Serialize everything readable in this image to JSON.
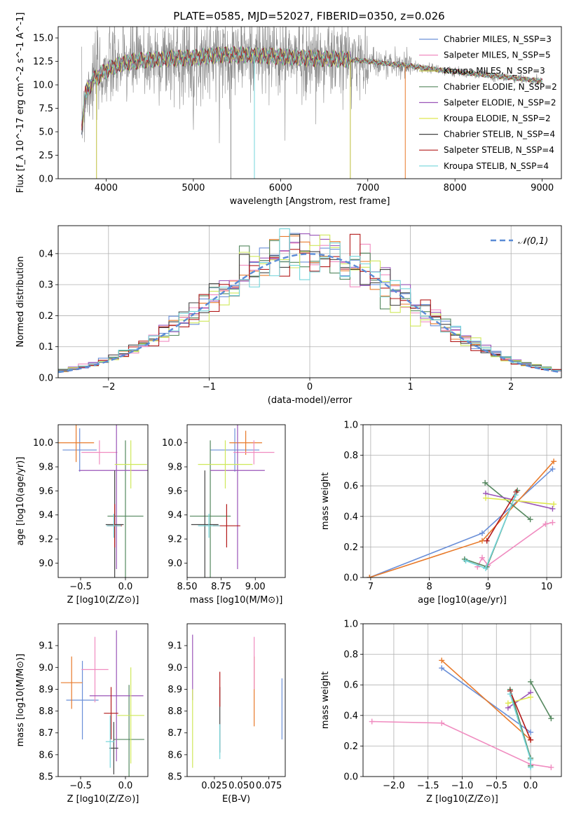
{
  "figure_title": "PLATE=0585, MJD=52027, FIBERID=0350, z=0.026",
  "colors": [
    "#6a8fd8",
    "#e87a2a",
    "#f08cc0",
    "#9a55b8",
    "#cfe85a",
    "#55885f",
    "#555555",
    "#b31b1b",
    "#74d5da",
    "#1f77b4"
  ],
  "chart_data": [
    {
      "id": "spectrum",
      "type": "line",
      "title": "PLATE=0585, MJD=52027, FIBERID=0350, z=0.026",
      "xlabel": "wavelength [Angstrom, rest frame]",
      "ylabel": "Flux [f_λ 10^-17 erg cm^-2 s^-1 A^-1]",
      "xlim": [
        3450,
        9220
      ],
      "ylim": [
        0,
        16.2
      ],
      "xticks": [
        4000,
        5000,
        6000,
        7000,
        8000,
        9000
      ],
      "yticks": [
        0.0,
        2.5,
        5.0,
        7.5,
        10.0,
        12.5,
        15.0
      ],
      "data_range": [
        3720,
        9000
      ],
      "legend_position": "upper right",
      "series": [
        {
          "name": "Chabrier MILES, N_SSP=3",
          "color": "#6a8fd8"
        },
        {
          "name": "Salpeter MILES, N_SSP=5",
          "color": "#f08cc0"
        },
        {
          "name": "Kroupa MILES, N_SSP=3",
          "color": "#bdbd3a"
        },
        {
          "name": "Chabrier ELODIE, N_SSP=2",
          "color": "#55885f"
        },
        {
          "name": "Salpeter ELODIE, N_SSP=2",
          "color": "#9a55b8"
        },
        {
          "name": "Kroupa ELODIE, N_SSP=2",
          "color": "#dfe850"
        },
        {
          "name": "Chabrier STELIB, N_SSP=4",
          "color": "#444444"
        },
        {
          "name": "Salpeter STELIB, N_SSP=4",
          "color": "#b31b1b"
        },
        {
          "name": "Kroupa STELIB, N_SSP=4",
          "color": "#74d5da"
        }
      ],
      "continuum": [
        [
          3720,
          5.5
        ],
        [
          3760,
          9.0
        ],
        [
          3850,
          10.5
        ],
        [
          3950,
          11.2
        ],
        [
          4050,
          11.8
        ],
        [
          4200,
          12.3
        ],
        [
          4400,
          12.6
        ],
        [
          4700,
          12.8
        ],
        [
          5000,
          12.9
        ],
        [
          5300,
          13.2
        ],
        [
          5600,
          13.2
        ],
        [
          6000,
          13.0
        ],
        [
          6400,
          12.8
        ],
        [
          6800,
          12.7
        ],
        [
          7100,
          12.4
        ],
        [
          7300,
          12.2
        ],
        [
          7500,
          12.0
        ],
        [
          7800,
          11.6
        ],
        [
          8100,
          11.3
        ],
        [
          8400,
          11.0
        ],
        [
          8700,
          10.7
        ],
        [
          9000,
          10.4
        ]
      ],
      "spikes": [
        {
          "x": 3890,
          "y": 0.0,
          "color": "#bdbd3a"
        },
        {
          "x": 5700,
          "y": 0.0,
          "color": "#74d5da"
        },
        {
          "x": 6800,
          "y": 0.0,
          "color": "#bdbd3a"
        },
        {
          "x": 7430,
          "y": 0.0,
          "color": "#e87a2a"
        },
        {
          "x": 5430,
          "y": 0.0,
          "color": "#888888"
        }
      ]
    },
    {
      "id": "residual-hist",
      "type": "histogram",
      "xlabel": "(data-model)/error",
      "ylabel": "Normed distribution",
      "xlim": [
        -2.5,
        2.5
      ],
      "ylim": [
        0,
        0.49
      ],
      "xticks": [
        -2,
        -1,
        0,
        1,
        2
      ],
      "xtick_labels": [
        "−2",
        "−1",
        "0",
        "1",
        "2"
      ],
      "yticks": [
        0.0,
        0.1,
        0.2,
        0.3,
        0.4
      ],
      "grid": true,
      "legend_position": "upper right",
      "legend": "𝒩(0,1)",
      "bin_width": 0.1,
      "series_colors": [
        "#6a8fd8",
        "#e87a2a",
        "#f08cc0",
        "#55885f",
        "#9a55b8",
        "#cfe85a",
        "#444444",
        "#b31b1b",
        "#74d5da"
      ]
    },
    {
      "id": "age-vs-Z",
      "type": "errorbar",
      "xlabel": "Z [log10(Z/Z⊙)]",
      "ylabel": "age [log10(age/yr)]",
      "xlim": [
        -0.75,
        0.25
      ],
      "ylim": [
        8.88,
        10.15
      ],
      "xticks": [
        -0.5,
        0.0
      ],
      "xtick_labels": [
        "−0.5",
        "0.0"
      ],
      "yticks": [
        9.0,
        9.2,
        9.4,
        9.6,
        9.8,
        10.0
      ],
      "points": [
        {
          "x": -0.51,
          "y": 9.94,
          "xerr": 0.19,
          "yerr": 0.18,
          "color": "#6a8fd8"
        },
        {
          "x": -0.55,
          "y": 10.0,
          "xerr": 0.2,
          "yerr": 0.16,
          "color": "#e87a2a"
        },
        {
          "x": -0.29,
          "y": 9.92,
          "xerr": 0.2,
          "yerr": 0.1,
          "color": "#f08cc0"
        },
        {
          "x": 0.0,
          "y": 9.39,
          "xerr": 0.2,
          "yerr": 0.63,
          "color": "#55885f"
        },
        {
          "x": -0.1,
          "y": 9.77,
          "xerr": 0.42,
          "yerr": 0.82,
          "color": "#9a55b8"
        },
        {
          "x": 0.06,
          "y": 9.82,
          "xerr": 0.18,
          "yerr": 0.2,
          "color": "#cfe85a"
        },
        {
          "x": -0.12,
          "y": 9.32,
          "xerr": 0.1,
          "yerr": 0.45,
          "color": "#444444"
        },
        {
          "x": -0.12,
          "y": 9.31,
          "xerr": 0.08,
          "yerr": 0.18,
          "color": "#b31b1b"
        },
        {
          "x": -0.13,
          "y": 9.31,
          "xerr": 0.08,
          "yerr": 0.1,
          "color": "#74d5da"
        }
      ]
    },
    {
      "id": "age-vs-mass",
      "type": "errorbar",
      "xlabel": "mass [log10(M/M⊙)]",
      "ylabel": "",
      "xlim": [
        8.5,
        9.22
      ],
      "ylim": [
        8.88,
        10.15
      ],
      "xticks": [
        8.5,
        8.75,
        9.0
      ],
      "xtick_labels": [
        "8.50",
        "8.75",
        "9.00"
      ],
      "yticks": [
        9.0,
        9.2,
        9.4,
        9.6,
        9.8,
        10.0
      ],
      "points": [
        {
          "x": 8.85,
          "y": 9.94,
          "xerr": 0.18,
          "yerr": 0.18,
          "color": "#6a8fd8"
        },
        {
          "x": 8.93,
          "y": 10.0,
          "xerr": 0.12,
          "yerr": 0.1,
          "color": "#e87a2a"
        },
        {
          "x": 8.99,
          "y": 9.92,
          "xerr": 0.15,
          "yerr": 0.1,
          "color": "#f08cc0"
        },
        {
          "x": 8.67,
          "y": 9.39,
          "xerr": 0.15,
          "yerr": 0.63,
          "color": "#55885f"
        },
        {
          "x": 8.87,
          "y": 9.77,
          "xerr": 0.2,
          "yerr": 0.82,
          "color": "#9a55b8"
        },
        {
          "x": 8.78,
          "y": 9.82,
          "xerr": 0.2,
          "yerr": 0.2,
          "color": "#cfe85a"
        },
        {
          "x": 8.63,
          "y": 9.32,
          "xerr": 0.1,
          "yerr": 0.45,
          "color": "#444444"
        },
        {
          "x": 8.79,
          "y": 9.31,
          "xerr": 0.1,
          "yerr": 0.18,
          "color": "#b31b1b"
        },
        {
          "x": 8.66,
          "y": 9.31,
          "xerr": 0.08,
          "yerr": 0.1,
          "color": "#74d5da"
        }
      ]
    },
    {
      "id": "weight-vs-age",
      "type": "line",
      "xlabel": "age [log10(age/yr)]",
      "ylabel": "mass weight",
      "xlim": [
        6.87,
        10.25
      ],
      "ylim": [
        0,
        1.0
      ],
      "xticks": [
        7,
        8,
        9,
        10
      ],
      "yticks": [
        0.0,
        0.2,
        0.4,
        0.6,
        0.8,
        1.0
      ],
      "grid": true,
      "series": [
        {
          "color": "#6a8fd8",
          "x": [
            6.98,
            8.9,
            10.1
          ],
          "y": [
            0.0,
            0.29,
            0.71
          ]
        },
        {
          "color": "#e87a2a",
          "x": [
            6.98,
            8.9,
            10.12
          ],
          "y": [
            0.0,
            0.24,
            0.76
          ]
        },
        {
          "color": "#f08cc0",
          "x": [
            8.82,
            8.9,
            9.0,
            9.98,
            10.1
          ],
          "y": [
            0.07,
            0.13,
            0.08,
            0.35,
            0.36
          ]
        },
        {
          "color": "#55885f",
          "x": [
            8.95,
            9.72
          ],
          "y": [
            0.62,
            0.38
          ]
        },
        {
          "color": "#9a55b8",
          "x": [
            8.96,
            10.1
          ],
          "y": [
            0.55,
            0.45
          ]
        },
        {
          "color": "#dfe850",
          "x": [
            8.96,
            10.12
          ],
          "y": [
            0.52,
            0.48
          ]
        },
        {
          "color": "#55885f",
          "x": [
            8.6,
            8.98,
            9.5
          ],
          "y": [
            0.12,
            0.07,
            0.57
          ]
        },
        {
          "color": "#b31b1b",
          "x": [
            8.98,
            9.48
          ],
          "y": [
            0.24,
            0.56
          ]
        },
        {
          "color": "#74d5da",
          "x": [
            8.62,
            8.96,
            9.47
          ],
          "y": [
            0.11,
            0.06,
            0.54
          ]
        }
      ]
    },
    {
      "id": "mass-vs-Z",
      "type": "errorbar",
      "xlabel": "Z [log10(Z/Z⊙)]",
      "ylabel": "mass [log10(M/M⊙)]",
      "xlim": [
        -0.75,
        0.25
      ],
      "ylim": [
        8.5,
        9.2
      ],
      "xticks": [
        -0.5,
        0.0
      ],
      "xtick_labels": [
        "−0.5",
        "0.0"
      ],
      "yticks": [
        8.5,
        8.6,
        8.7,
        8.8,
        8.9,
        9.0,
        9.1
      ],
      "points": [
        {
          "x": -0.48,
          "y": 8.85,
          "xerr": 0.18,
          "yerr": 0.18,
          "color": "#6a8fd8"
        },
        {
          "x": -0.6,
          "y": 8.93,
          "xerr": 0.12,
          "yerr": 0.12,
          "color": "#e87a2a"
        },
        {
          "x": -0.34,
          "y": 8.99,
          "xerr": 0.15,
          "yerr": 0.15,
          "color": "#f08cc0"
        },
        {
          "x": 0.04,
          "y": 8.67,
          "xerr": 0.17,
          "yerr": 0.25,
          "color": "#55885f"
        },
        {
          "x": -0.1,
          "y": 8.87,
          "xerr": 0.3,
          "yerr": 0.3,
          "color": "#9a55b8"
        },
        {
          "x": 0.06,
          "y": 8.78,
          "xerr": 0.15,
          "yerr": 0.22,
          "color": "#cfe85a"
        },
        {
          "x": -0.13,
          "y": 8.63,
          "xerr": 0.05,
          "yerr": 0.12,
          "color": "#444444"
        },
        {
          "x": -0.16,
          "y": 8.79,
          "xerr": 0.08,
          "yerr": 0.12,
          "color": "#b31b1b"
        },
        {
          "x": -0.17,
          "y": 8.66,
          "xerr": 0.05,
          "yerr": 0.12,
          "color": "#74d5da"
        }
      ]
    },
    {
      "id": "mass-vs-ebv",
      "type": "errorbar",
      "xlabel": "E(B-V)",
      "ylabel": "",
      "xlim": [
        0.0,
        0.09
      ],
      "ylim": [
        8.5,
        9.2
      ],
      "xticks": [
        0.025,
        0.05,
        0.075
      ],
      "xtick_labels": [
        "0.025",
        "0.050",
        "0.075"
      ],
      "yticks": [
        8.5,
        8.6,
        8.7,
        8.8,
        8.9,
        9.0,
        9.1
      ],
      "points": [
        {
          "x": 0.087,
          "y": 8.81,
          "xerr": 0,
          "yerr": 0.14,
          "color": "#6a8fd8"
        },
        {
          "x": 0.0615,
          "y": 8.89,
          "xerr": 0,
          "yerr": 0.16,
          "color": "#e87a2a"
        },
        {
          "x": 0.0615,
          "y": 9.02,
          "xerr": 0,
          "yerr": 0.12,
          "color": "#f08cc0"
        },
        {
          "x": 0.005,
          "y": 9.0,
          "xerr": 0,
          "yerr": 0.15,
          "color": "#9a55b8"
        },
        {
          "x": 0.005,
          "y": 8.72,
          "xerr": 0,
          "yerr": 0.18,
          "color": "#cfe85a"
        },
        {
          "x": 0.03,
          "y": 8.76,
          "xerr": 0,
          "yerr": 0.15,
          "color": "#444444"
        },
        {
          "x": 0.03,
          "y": 8.9,
          "xerr": 0,
          "yerr": 0.08,
          "color": "#b31b1b"
        },
        {
          "x": 0.03,
          "y": 8.66,
          "xerr": 0,
          "yerr": 0.08,
          "color": "#74d5da"
        }
      ]
    },
    {
      "id": "weight-vs-Z",
      "type": "line",
      "xlabel": "Z [log10(Z/Z⊙)]",
      "ylabel": "mass weight",
      "xlim": [
        -2.45,
        0.45
      ],
      "ylim": [
        0,
        1.0
      ],
      "xticks": [
        -2.0,
        -1.5,
        -1.0,
        -0.5,
        0.0
      ],
      "xtick_labels": [
        "−2.0",
        "−1.5",
        "−1.0",
        "−0.5",
        "0.0"
      ],
      "yticks": [
        0.0,
        0.2,
        0.4,
        0.6,
        0.8,
        1.0
      ],
      "grid": true,
      "series": [
        {
          "color": "#6a8fd8",
          "x": [
            -1.3,
            0.0
          ],
          "y": [
            0.71,
            0.29
          ]
        },
        {
          "color": "#e87a2a",
          "x": [
            -1.3,
            0.0
          ],
          "y": [
            0.76,
            0.24
          ]
        },
        {
          "color": "#f08cc0",
          "x": [
            -2.32,
            -1.3,
            0.0,
            0.3
          ],
          "y": [
            0.36,
            0.35,
            0.08,
            0.06
          ]
        },
        {
          "color": "#55885f",
          "x": [
            0.0,
            0.3
          ],
          "y": [
            0.62,
            0.38
          ]
        },
        {
          "color": "#9a55b8",
          "x": [
            -0.33,
            0.0
          ],
          "y": [
            0.45,
            0.55
          ]
        },
        {
          "color": "#dfe850",
          "x": [
            -0.33,
            0.0
          ],
          "y": [
            0.48,
            0.52
          ]
        },
        {
          "color": "#55885f",
          "x": [
            -0.3,
            0.0,
            0.0
          ],
          "y": [
            0.57,
            0.12,
            0.07
          ]
        },
        {
          "color": "#b31b1b",
          "x": [
            -0.3,
            0.0
          ],
          "y": [
            0.56,
            0.24
          ]
        },
        {
          "color": "#74d5da",
          "x": [
            -0.3,
            0.0,
            0.0
          ],
          "y": [
            0.54,
            0.11,
            0.06
          ]
        }
      ]
    }
  ]
}
